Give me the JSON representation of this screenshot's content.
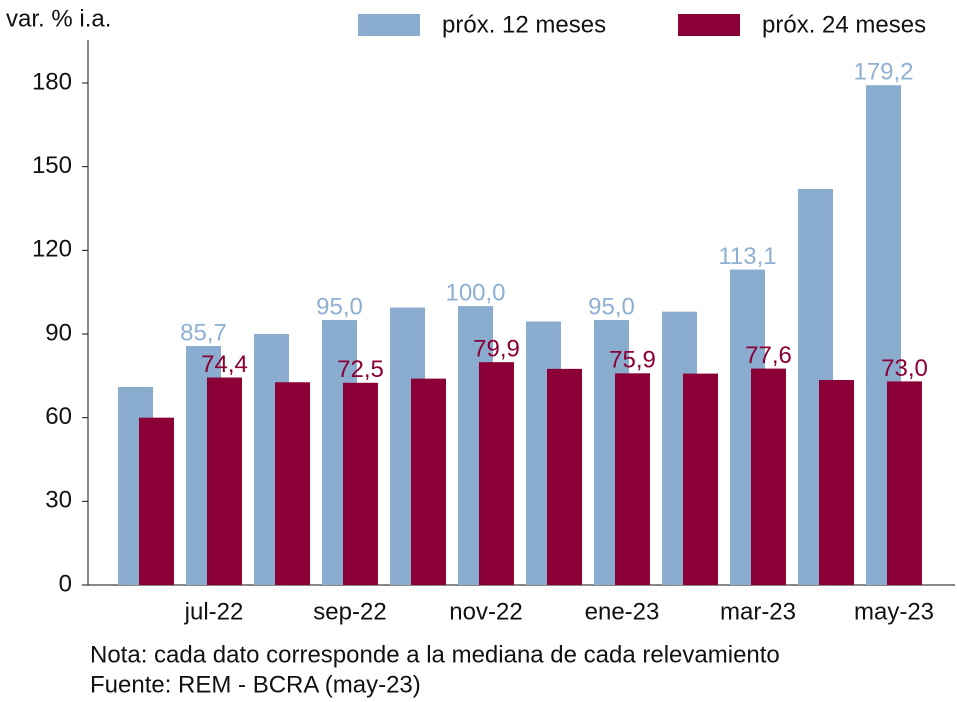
{
  "chart_data": {
    "type": "bar",
    "y_label": "var. % i.a.",
    "categories": [
      null,
      "jul-22",
      null,
      "sep-22",
      null,
      "nov-22",
      null,
      "ene-23",
      null,
      "mar-23",
      null,
      "may-23"
    ],
    "series": [
      {
        "name": "próx. 12 meses",
        "color": "#8aaccf",
        "label_color": "#8fb0d3",
        "values": [
          71,
          85.7,
          90,
          95.0,
          99.5,
          100.0,
          94.5,
          95.0,
          98,
          113.1,
          142,
          179.2
        ],
        "value_labels": [
          null,
          "85,7",
          null,
          "95,0",
          null,
          "100,0",
          null,
          "95,0",
          null,
          "113,1",
          null,
          "179,2"
        ]
      },
      {
        "name": "próx. 24 meses",
        "color": "#8b0036",
        "label_color": "#8b0036",
        "values": [
          60,
          74.4,
          72.7,
          72.5,
          74,
          79.9,
          77.5,
          75.9,
          75.8,
          77.6,
          73.5,
          73.0
        ],
        "value_labels": [
          null,
          "74,4",
          null,
          "72,5",
          null,
          "79,9",
          null,
          "75,9",
          null,
          "77,6",
          null,
          "73,0"
        ]
      }
    ],
    "ylim": [
      0,
      180
    ],
    "yticks": [
      0,
      30,
      60,
      90,
      120,
      150,
      180
    ],
    "notes": [
      "Nota: cada dato corresponde a la mediana de cada relevamiento",
      "Fuente: REM - BCRA (may-23)"
    ]
  }
}
